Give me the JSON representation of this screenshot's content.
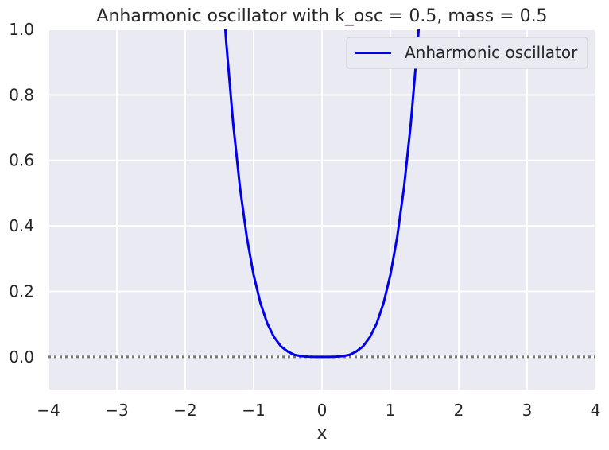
{
  "chart_data": {
    "type": "line",
    "title": "Anharmonic oscillator with k_osc = 0.5, mass = 0.5",
    "xlabel": "x",
    "ylabel": "",
    "xlim": [
      -4,
      4
    ],
    "ylim": [
      -0.1,
      1.0
    ],
    "x_ticks": [
      -4,
      -3,
      -2,
      -1,
      0,
      1,
      2,
      3,
      4
    ],
    "x_tick_labels": [
      "−4",
      "−3",
      "−2",
      "−1",
      "0",
      "1",
      "2",
      "3",
      "4"
    ],
    "y_ticks": [
      0.0,
      0.2,
      0.4,
      0.6,
      0.8,
      1.0
    ],
    "y_tick_labels": [
      "0.0",
      "0.2",
      "0.4",
      "0.6",
      "0.8",
      "1.0"
    ],
    "grid": true,
    "legend_position": "top-right",
    "series": [
      {
        "name": "Anharmonic oscillator",
        "color": "#0000ee",
        "x": [
          -1.45,
          -1.4,
          -1.3,
          -1.2,
          -1.1,
          -1.0,
          -0.9,
          -0.8,
          -0.7,
          -0.6,
          -0.5,
          -0.4,
          -0.3,
          -0.2,
          -0.1,
          0.0,
          0.1,
          0.2,
          0.3,
          0.4,
          0.5,
          0.6,
          0.7,
          0.8,
          0.9,
          1.0,
          1.1,
          1.2,
          1.3,
          1.4,
          1.45
        ],
        "y": [
          1.105,
          0.96,
          0.714,
          0.518,
          0.366,
          0.25,
          0.164,
          0.102,
          0.06,
          0.032,
          0.016,
          0.006,
          0.002,
          0.0004,
          0.0,
          0.0,
          0.0,
          0.0004,
          0.002,
          0.006,
          0.016,
          0.032,
          0.06,
          0.102,
          0.164,
          0.25,
          0.366,
          0.518,
          0.714,
          0.96,
          1.105
        ]
      }
    ],
    "reference_line": {
      "y": 0.0,
      "style": "dotted",
      "color": "#777777"
    }
  }
}
